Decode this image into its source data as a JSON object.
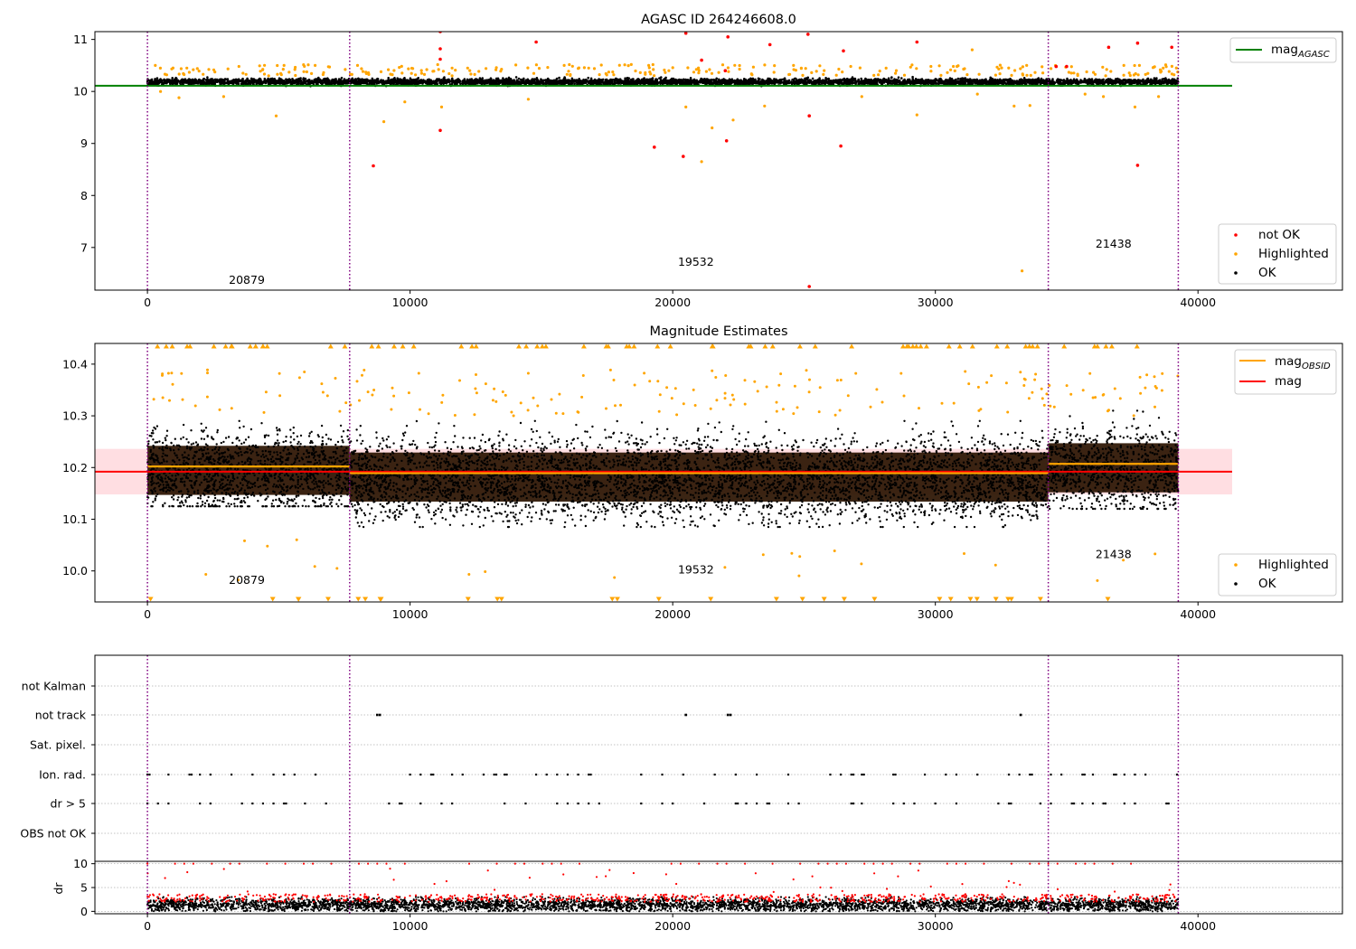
{
  "colors": {
    "ok": "#000000",
    "highlighted": "#ffa500",
    "not_ok": "#ff0000",
    "agasc_line": "#008000",
    "obsid_line": "#ffa500",
    "mag_line": "#ff0000",
    "mag_band": "#ffb6bf",
    "obs_boundary": "#800080",
    "grid": "#b0b0b0"
  },
  "chart_data": [
    {
      "type": "scatter",
      "title": "AGASC ID 264246608.0",
      "xlim": [
        -2000,
        45500
      ],
      "ylim": [
        6.18,
        11.15
      ],
      "xticks": [
        0,
        10000,
        20000,
        30000,
        40000
      ],
      "xtick_labels": [
        "0",
        "10000",
        "20000",
        "30000",
        "40000"
      ],
      "yticks": [
        7,
        8,
        9,
        10,
        11
      ],
      "ytick_labels": [
        "7",
        "8",
        "9",
        "10",
        "11"
      ],
      "obs_boundaries": [
        0,
        7700,
        34300,
        39250
      ],
      "obsid_labels": [
        {
          "x": 3100,
          "y": 6.3,
          "text": "20879"
        },
        {
          "x": 20200,
          "y": 6.65,
          "text": "19532"
        },
        {
          "x": 36100,
          "y": 7.0,
          "text": "21438"
        }
      ],
      "lines": [
        {
          "name": "mag",
          "subscript": "AGASC",
          "y": 10.11,
          "x_range": [
            -2000,
            41300
          ],
          "color": "#008000"
        }
      ],
      "ok_band": {
        "y_min": 10.08,
        "y_max": 10.3,
        "x_range": [
          0,
          39250
        ]
      },
      "legend_upper": {
        "placement": "upper right",
        "entries": [
          {
            "name": "mag",
            "subscript": "AGASC"
          }
        ]
      },
      "legend_lower": {
        "placement": "lower right",
        "entries": [
          "not OK",
          "Highlighted",
          "OK"
        ]
      },
      "series": [
        {
          "name": "not OK",
          "color": "#ff0000",
          "points": [
            [
              11150,
              11.15
            ],
            [
              11150,
              10.82
            ],
            [
              11150,
              10.62
            ],
            [
              11150,
              9.25
            ],
            [
              14800,
              10.95
            ],
            [
              8600,
              8.57
            ],
            [
              19300,
              8.93
            ],
            [
              20400,
              8.75
            ],
            [
              20500,
              11.12
            ],
            [
              21100,
              10.6
            ],
            [
              22000,
              10.4
            ],
            [
              22100,
              11.05
            ],
            [
              22050,
              9.05
            ],
            [
              23700,
              10.9
            ],
            [
              25150,
              11.1
            ],
            [
              25200,
              9.53
            ],
            [
              25200,
              6.25
            ],
            [
              26400,
              8.95
            ],
            [
              26500,
              10.78
            ],
            [
              29300,
              10.95
            ],
            [
              34600,
              10.48
            ],
            [
              35000,
              10.48
            ],
            [
              36600,
              10.85
            ],
            [
              37700,
              10.93
            ],
            [
              37700,
              8.58
            ],
            [
              39000,
              10.85
            ]
          ]
        },
        {
          "name": "Highlighted",
          "color": "#ffa500",
          "points": [
            [
              300,
              10.5
            ],
            [
              500,
              10.0
            ],
            [
              1200,
              9.88
            ],
            [
              1500,
              10.45
            ],
            [
              2900,
              9.9
            ],
            [
              4900,
              9.53
            ],
            [
              5200,
              10.5
            ],
            [
              8000,
              10.5
            ],
            [
              9000,
              9.42
            ],
            [
              9800,
              9.8
            ],
            [
              11200,
              9.7
            ],
            [
              11600,
              10.45
            ],
            [
              14500,
              9.85
            ],
            [
              16800,
              10.45
            ],
            [
              20500,
              9.7
            ],
            [
              21100,
              8.65
            ],
            [
              21500,
              9.3
            ],
            [
              22300,
              9.45
            ],
            [
              23500,
              9.72
            ],
            [
              24600,
              10.5
            ],
            [
              27200,
              9.9
            ],
            [
              29300,
              9.55
            ],
            [
              31400,
              10.8
            ],
            [
              31600,
              9.95
            ],
            [
              33000,
              9.72
            ],
            [
              33300,
              6.55
            ],
            [
              33600,
              9.73
            ],
            [
              35700,
              9.95
            ],
            [
              36400,
              9.9
            ],
            [
              37600,
              9.7
            ],
            [
              38500,
              9.9
            ]
          ]
        }
      ]
    },
    {
      "type": "scatter",
      "title": "Magnitude Estimates",
      "xlim": [
        -2000,
        45500
      ],
      "ylim": [
        9.94,
        10.44
      ],
      "xticks": [
        0,
        10000,
        20000,
        30000,
        40000
      ],
      "xtick_labels": [
        "0",
        "10000",
        "20000",
        "30000",
        "40000"
      ],
      "yticks": [
        10.0,
        10.1,
        10.2,
        10.3,
        10.4
      ],
      "ytick_labels": [
        "10.0",
        "10.1",
        "10.2",
        "10.3",
        "10.4"
      ],
      "obs_boundaries": [
        0,
        7700,
        34300,
        39250
      ],
      "obsid_labels": [
        {
          "x": 3100,
          "y": 9.975,
          "text": "20879"
        },
        {
          "x": 20200,
          "y": 9.995,
          "text": "19532"
        },
        {
          "x": 36100,
          "y": 10.025,
          "text": "21438"
        }
      ],
      "mag_band": {
        "y_min": 10.148,
        "y_max": 10.236,
        "x_range": [
          -2000,
          41300
        ]
      },
      "lines": [
        {
          "name": "mag",
          "y": 10.192,
          "x_range": [
            -2000,
            41300
          ],
          "color": "#ff0000"
        }
      ],
      "obsid_segments": [
        {
          "x_range": [
            0,
            7700
          ],
          "y": 10.202
        },
        {
          "x_range": [
            7700,
            34300
          ],
          "y": 10.189
        },
        {
          "x_range": [
            34300,
            39250
          ],
          "y": 10.207
        }
      ],
      "ok_spread": [
        {
          "x_range": [
            0,
            7700
          ],
          "lo": 10.125,
          "hi": 10.29
        },
        {
          "x_range": [
            7700,
            34300
          ],
          "lo": 10.085,
          "hi": 10.29
        },
        {
          "x_range": [
            34300,
            39250
          ],
          "lo": 10.12,
          "hi": 10.31
        }
      ],
      "clipped_marker_counts": {
        "top": 70,
        "bottom": 30
      },
      "legend_upper": {
        "placement": "upper right",
        "entries": [
          {
            "name": "mag",
            "subscript": "OBSID"
          },
          {
            "name": "mag"
          }
        ]
      },
      "legend_lower": {
        "placement": "lower right",
        "entries": [
          "Highlighted",
          "OK"
        ]
      }
    },
    {
      "type": "scatter",
      "title": "",
      "xlim": [
        -2000,
        45500
      ],
      "categories": [
        "not Kalman",
        "not track",
        "Sat. pixel.",
        "Ion. rad.",
        "dr > 5",
        "OBS not OK"
      ],
      "obs_boundaries": [
        0,
        7700,
        34300,
        39250
      ],
      "not_track_x": [
        8750,
        8850,
        20500,
        22100,
        22200,
        33250
      ],
      "flag_rows": [
        "Ion. rad.",
        "dr > 5"
      ],
      "flag_interval": 400
    },
    {
      "type": "scatter",
      "title": "",
      "ylabel": "dr",
      "xlim": [
        -2000,
        45500
      ],
      "ylim": [
        -0.5,
        10.5
      ],
      "xticks": [
        0,
        10000,
        20000,
        30000,
        40000
      ],
      "xtick_labels": [
        "0",
        "10000",
        "20000",
        "30000",
        "40000"
      ],
      "yticks": [
        0,
        5,
        10
      ],
      "ytick_labels": [
        "0",
        "5",
        "10"
      ],
      "clip_value": 10,
      "obs_boundaries": [
        0,
        7700,
        34300,
        39250
      ]
    }
  ]
}
